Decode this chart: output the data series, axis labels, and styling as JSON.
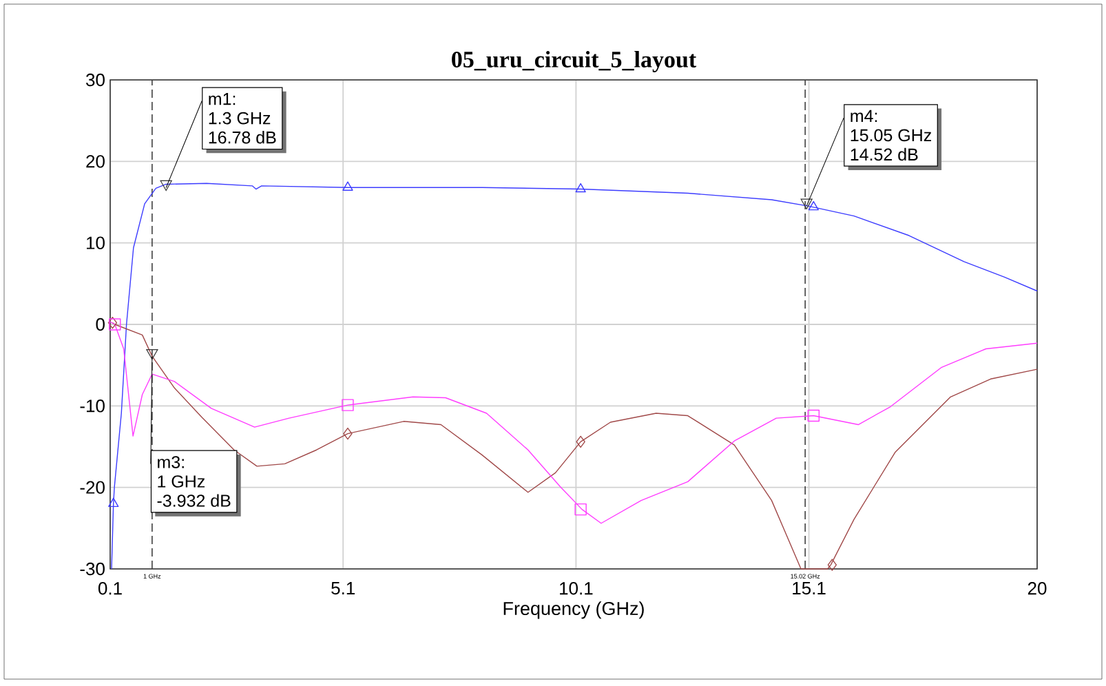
{
  "chart_data": {
    "type": "line",
    "title": "05_uru_circuit_5_layout",
    "xlabel": "Frequency (GHz)",
    "xlim": [
      0.1,
      20
    ],
    "ylim": [
      -30,
      30
    ],
    "xticks": [
      0.1,
      5.1,
      10.1,
      15.1,
      20
    ],
    "yticks": [
      -30,
      -20,
      -10,
      0,
      10,
      20,
      30
    ],
    "grid": true,
    "series": [
      {
        "color": "#3c3cff",
        "x": [
          0.13,
          0.17,
          0.19,
          0.34,
          0.45,
          0.6,
          0.84,
          1.08,
          1.3,
          2.17,
          3.15,
          3.23,
          3.35,
          5.2,
          8.08,
          10.2,
          12.5,
          14.3,
          15.1,
          16.07,
          17.25,
          18.43,
          19.3,
          20
        ],
        "values": [
          -30,
          -22,
          -20,
          -10.9,
          0,
          9.4,
          14.8,
          16.7,
          17.2,
          17.3,
          17.0,
          16.6,
          17.0,
          16.8,
          16.8,
          16.6,
          16.1,
          15.3,
          14.5,
          13.3,
          10.9,
          7.7,
          5.8,
          4.1
        ]
      },
      {
        "color": "#a04848",
        "x": [
          0.15,
          0.2,
          0.79,
          1.0,
          1.48,
          2.07,
          2.76,
          3.25,
          3.85,
          4.53,
          5.2,
          6.4,
          7.2,
          8.08,
          9.07,
          9.66,
          10.2,
          10.84,
          11.82,
          12.5,
          13.5,
          14.3,
          14.93,
          15.5,
          15.57,
          16.07,
          16.95,
          18.14,
          19.0,
          20
        ],
        "values": [
          0.2,
          0,
          -1.3,
          -3.9,
          -7.8,
          -11.4,
          -15.4,
          -17.4,
          -17.1,
          -15.4,
          -13.4,
          -11.9,
          -12.3,
          -16,
          -20.6,
          -18.2,
          -14.4,
          -12.0,
          -10.9,
          -11.2,
          -14.8,
          -21.6,
          -30,
          -30,
          -29.5,
          -23.9,
          -15.7,
          -8.9,
          -6.7,
          -5.5
        ]
      },
      {
        "color": "#ff3cff",
        "x": [
          0.1,
          0.2,
          0.39,
          0.59,
          0.79,
          1.0,
          1.48,
          2.27,
          3.2,
          3.94,
          5.2,
          6.6,
          7.3,
          8.18,
          9.07,
          9.76,
          10.23,
          10.64,
          11.5,
          12.5,
          13.5,
          14.4,
          15.2,
          16.16,
          16.85,
          17.94,
          18.9,
          20
        ],
        "values": [
          0.3,
          0,
          -3.0,
          -13.7,
          -8.6,
          -6.1,
          -7.0,
          -10.3,
          -12.6,
          -11.5,
          -9.9,
          -8.9,
          -9.0,
          -10.9,
          -15.4,
          -19.9,
          -22.7,
          -24.4,
          -21.6,
          -19.3,
          -14.3,
          -11.5,
          -11.2,
          -12.3,
          -10.1,
          -5.3,
          -3.0,
          -2.3
        ]
      },
      {
        "type": "scatter",
        "color": "#3c3cff",
        "marker": "triangle",
        "x": [
          0.17,
          5.2,
          10.2,
          15.2
        ],
        "values": [
          -22,
          16.8,
          16.6,
          14.4
        ]
      },
      {
        "type": "scatter",
        "color": "#a04848",
        "marker": "diamond",
        "x": [
          0.15,
          5.2,
          10.2,
          15.6
        ],
        "values": [
          0.2,
          -13.4,
          -14.4,
          -29.5
        ]
      },
      {
        "type": "scatter",
        "color": "#ff3cff",
        "marker": "square",
        "x": [
          0.2,
          5.2,
          10.2,
          15.2
        ],
        "values": [
          0,
          -9.9,
          -22.7,
          -11.2
        ]
      }
    ],
    "ref_lines": [
      {
        "axis": "x",
        "value": 1,
        "label": "1 GHz",
        "color": "#404040",
        "line_style": "dashed"
      },
      {
        "axis": "x",
        "value": 15.02,
        "label": "15.02 GHz",
        "color": "#404040",
        "line_style": "dashed"
      }
    ],
    "annotations": [
      {
        "text": "m1:",
        "x": 1.3,
        "y": 16.78
      },
      "1.3 GHz",
      "16.78 dB",
      {
        "text": "m3:",
        "x": 1,
        "y": -3.932
      },
      "1 GHz",
      "-3.932 dB",
      {
        "text": "m4:",
        "x": 15.05,
        "y": 14.52
      },
      "15.05 GHz",
      "14.52 dB"
    ]
  }
}
